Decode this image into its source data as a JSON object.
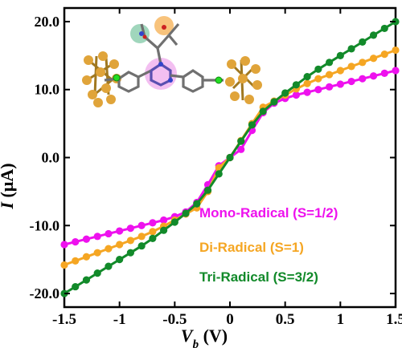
{
  "chart_data": {
    "type": "line",
    "title": "",
    "xlabel": "V_b (V)",
    "ylabel": "I (μA)",
    "xlim": [
      -1.5,
      1.5
    ],
    "ylim": [
      -22,
      22
    ],
    "x_ticks": [
      -1.5,
      -1,
      -0.5,
      0,
      0.5,
      1,
      1.5
    ],
    "x_tick_labels": [
      "-1.5",
      "-1",
      "-0.5",
      "0",
      "0.5",
      "1",
      "1.5"
    ],
    "y_ticks": [
      -20,
      -10,
      0,
      10,
      20
    ],
    "y_tick_labels": [
      "-20.0",
      "-10.0",
      "0.0",
      "10.0",
      "20.0"
    ],
    "grid": false,
    "legend_position": "lower-right",
    "series": [
      {
        "name": "Mono-Radical (S=1/2)",
        "color": "#ee11ee",
        "x": [
          -1.5,
          -1.4,
          -1.3,
          -1.2,
          -1.1,
          -1.0,
          -0.9,
          -0.8,
          -0.7,
          -0.6,
          -0.5,
          -0.4,
          -0.3,
          -0.2,
          -0.1,
          0.0,
          0.1,
          0.2,
          0.3,
          0.4,
          0.5,
          0.6,
          0.7,
          0.8,
          0.9,
          1.0,
          1.1,
          1.2,
          1.3,
          1.4,
          1.5
        ],
        "y": [
          -12.8,
          -12.4,
          -12.0,
          -11.6,
          -11.2,
          -10.8,
          -10.4,
          -10.0,
          -9.6,
          -9.2,
          -8.7,
          -8.0,
          -6.6,
          -4.0,
          -1.2,
          0.0,
          1.2,
          4.0,
          6.6,
          8.0,
          8.7,
          9.2,
          9.6,
          10.0,
          10.4,
          10.8,
          11.2,
          11.6,
          12.0,
          12.4,
          12.8
        ]
      },
      {
        "name": "Di-Radical (S=1)",
        "color": "#f5a623",
        "x": [
          -1.5,
          -1.4,
          -1.3,
          -1.2,
          -1.1,
          -1.0,
          -0.9,
          -0.8,
          -0.7,
          -0.6,
          -0.5,
          -0.4,
          -0.3,
          -0.2,
          -0.1,
          0.0,
          0.1,
          0.2,
          0.3,
          0.4,
          0.5,
          0.6,
          0.7,
          0.8,
          0.9,
          1.0,
          1.1,
          1.2,
          1.3,
          1.4,
          1.5
        ],
        "y": [
          -15.8,
          -15.2,
          -14.6,
          -14.0,
          -13.4,
          -12.8,
          -12.2,
          -11.6,
          -10.9,
          -10.1,
          -9.2,
          -8.3,
          -7.4,
          -5.0,
          -1.5,
          0.0,
          2.5,
          5.0,
          7.4,
          8.3,
          9.2,
          10.1,
          10.9,
          11.6,
          12.2,
          12.8,
          13.4,
          14.0,
          14.6,
          15.2,
          15.8
        ]
      },
      {
        "name": "Tri-Radical (S=3/2)",
        "color": "#128a2a",
        "x": [
          -1.5,
          -1.4,
          -1.3,
          -1.2,
          -1.1,
          -1.0,
          -0.9,
          -0.8,
          -0.7,
          -0.6,
          -0.5,
          -0.4,
          -0.3,
          -0.2,
          -0.1,
          0.0,
          0.1,
          0.2,
          0.3,
          0.4,
          0.5,
          0.6,
          0.7,
          0.8,
          0.9,
          1.0,
          1.1,
          1.2,
          1.3,
          1.4,
          1.5
        ],
        "y": [
          -20.0,
          -19.0,
          -18.0,
          -17.0,
          -16.0,
          -15.0,
          -14.0,
          -13.0,
          -11.9,
          -10.7,
          -9.5,
          -8.2,
          -6.8,
          -4.8,
          -2.4,
          0.0,
          2.4,
          4.8,
          6.8,
          8.2,
          9.5,
          10.7,
          11.9,
          13.0,
          14.0,
          15.0,
          16.0,
          17.0,
          18.0,
          19.0,
          20.0
        ]
      }
    ]
  },
  "figure": {
    "y_axis_title_symbol": "I",
    "y_axis_title_unit": " (μA)",
    "x_axis_title_symbol": "V",
    "x_axis_title_subscript": "b",
    "x_axis_title_unit": " (V)",
    "inset_icon": "molecular-junction-structure"
  }
}
